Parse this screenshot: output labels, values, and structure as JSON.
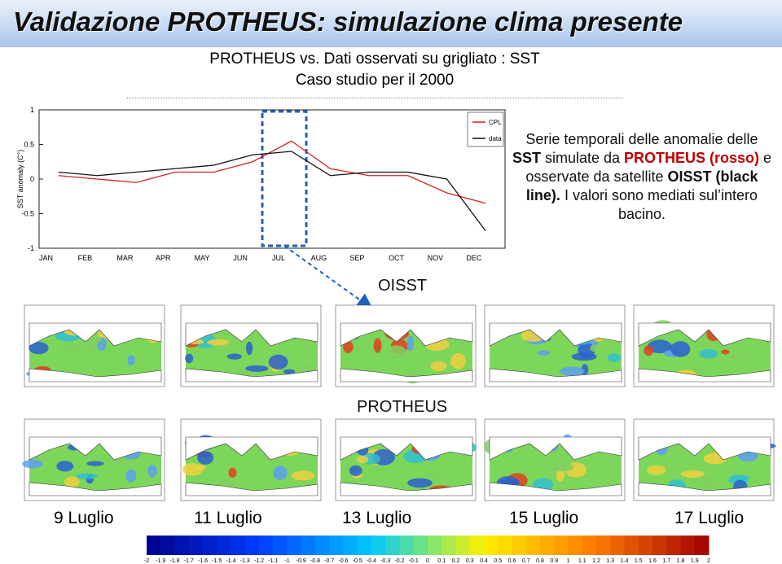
{
  "header": {
    "title": "Validazione PROTHEUS: simulazione clima presente",
    "subtitle": [
      "PROTHEUS vs. Dati osservati su grigliato : SST",
      "Caso studio per il 2000"
    ]
  },
  "chart_data": {
    "type": "line",
    "y_label": "SST anomaly (C°)",
    "categories": [
      "JAN",
      "FEB",
      "MAR",
      "APR",
      "MAY",
      "JUN",
      "JUL",
      "AUG",
      "SEP",
      "OCT",
      "NOV",
      "DEC"
    ],
    "series": [
      {
        "name": "CPL",
        "color": "#d62020",
        "values": [
          0.05,
          0.0,
          -0.05,
          0.1,
          0.1,
          0.25,
          0.55,
          0.15,
          0.05,
          0.05,
          -0.2,
          -0.35
        ]
      },
      {
        "name": "data",
        "color": "#111111",
        "values": [
          0.1,
          0.05,
          0.1,
          0.15,
          0.2,
          0.35,
          0.4,
          0.05,
          0.1,
          0.1,
          0.0,
          -0.75
        ]
      }
    ],
    "ylim": [
      -1,
      1
    ],
    "yticks": [
      -1,
      -0.5,
      0,
      0.5,
      1
    ]
  },
  "description": {
    "parts": [
      "Serie temporali delle anomalie delle ",
      "SST",
      " simulate da ",
      "PROTHEUS (rosso)",
      " e osservate da satellite ",
      "OISST (black line).",
      " I valori sono mediati sul’intero bacino."
    ]
  },
  "rows": {
    "oisst": "OISST",
    "protheus": "PROTHEUS"
  },
  "dates": [
    "9 Luglio",
    "11 Luglio",
    "13 Luglio",
    "15 Luglio",
    "17 Luglio"
  ],
  "colorbar": {
    "ticks": [
      -2,
      -1.9,
      -1.8,
      -1.7,
      -1.6,
      -1.5,
      -1.4,
      -1.3,
      -1.2,
      -1.1,
      -1,
      -0.9,
      -0.8,
      -0.7,
      -0.6,
      -0.5,
      -0.4,
      -0.3,
      -0.2,
      -0.1,
      0,
      0.1,
      0.2,
      0.3,
      0.4,
      0.5,
      0.6,
      0.7,
      0.8,
      0.9,
      1,
      1.1,
      1.2,
      1.3,
      1.4,
      1.5,
      1.6,
      1.7,
      1.8,
      1.9,
      2
    ]
  }
}
